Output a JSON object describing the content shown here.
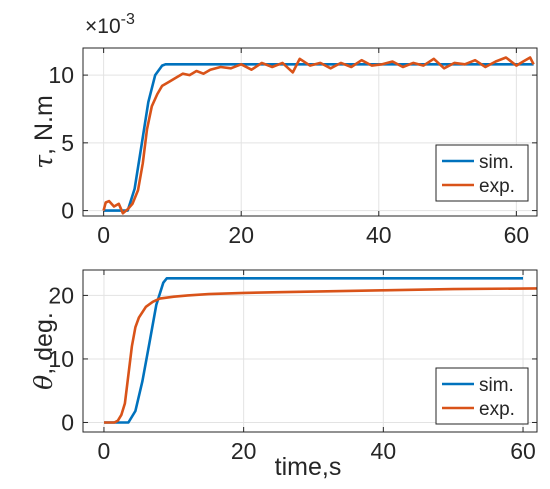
{
  "chart_data": [
    {
      "type": "line",
      "ylabel_var": "τ",
      "ylabel_unit": ", N.m",
      "xlabel": "",
      "exponent_label": "×10",
      "exponent_power": "-3",
      "xlim": [
        -3,
        63
      ],
      "ylim": [
        -0.4,
        12
      ],
      "xticks": [
        0,
        20,
        40,
        60
      ],
      "yticks": [
        0,
        5,
        10
      ],
      "grid": true,
      "legend_position": "bottom-right",
      "series": [
        {
          "name": "sim.",
          "color": "#0072BD",
          "x": [
            0,
            3.5,
            4.5,
            5.5,
            6.5,
            7.5,
            8.5,
            9,
            20,
            30,
            40,
            50,
            62.5
          ],
          "y": [
            0,
            0,
            1.6,
            4.8,
            8,
            10,
            10.7,
            10.8,
            10.8,
            10.8,
            10.8,
            10.8,
            10.8
          ]
        },
        {
          "name": "exp.",
          "color": "#D95319",
          "x": [
            0,
            0.3,
            0.8,
            1.5,
            2.2,
            2.8,
            3.5,
            4.2,
            5,
            5.7,
            6.3,
            7,
            7.8,
            8.5,
            9.5,
            10.5,
            11.5,
            12.5,
            13.5,
            14.5,
            15.5,
            17,
            18.5,
            20,
            21.5,
            23,
            24.5,
            26,
            27.5,
            28.5,
            30,
            31.5,
            33,
            34.5,
            36,
            37.5,
            39,
            40.5,
            42,
            43.5,
            45,
            46.5,
            48,
            49.5,
            51,
            52.5,
            54,
            55.5,
            57,
            58.5,
            60,
            61,
            62,
            62.5
          ],
          "y": [
            0,
            0.6,
            0.7,
            0.3,
            0.5,
            -0.2,
            0.1,
            0.5,
            1.5,
            3.5,
            6,
            7.7,
            8.6,
            9.2,
            9.5,
            9.8,
            10.1,
            10.0,
            10.3,
            10.1,
            10.4,
            10.6,
            10.5,
            10.8,
            10.4,
            10.9,
            10.6,
            10.9,
            10.2,
            11.2,
            10.7,
            10.9,
            10.5,
            10.9,
            10.6,
            11.1,
            10.7,
            10.8,
            11.0,
            10.6,
            10.9,
            10.7,
            11.2,
            10.5,
            10.9,
            10.8,
            11.1,
            10.6,
            11.0,
            11.3,
            10.7,
            11.0,
            11.3,
            10.8
          ]
        }
      ]
    },
    {
      "type": "line",
      "ylabel_var": "θ",
      "ylabel_unit": ", deg.",
      "xlabel": "time,s",
      "xlim": [
        -3,
        62
      ],
      "ylim": [
        -1.5,
        24
      ],
      "xticks": [
        0,
        20,
        40,
        60
      ],
      "yticks": [
        0,
        10,
        20
      ],
      "grid": true,
      "legend_position": "bottom-right",
      "series": [
        {
          "name": "sim.",
          "color": "#0072BD",
          "x": [
            0,
            3.5,
            4.5,
            5.5,
            6.5,
            7.5,
            8.5,
            9,
            20,
            30,
            40,
            50,
            60
          ],
          "y": [
            0,
            0,
            1.8,
            6.5,
            12.5,
            18.5,
            22,
            22.7,
            22.7,
            22.7,
            22.7,
            22.7,
            22.7
          ]
        },
        {
          "name": "exp.",
          "color": "#D95319",
          "x": [
            0,
            1.5,
            2,
            2.5,
            3,
            3.5,
            4,
            4.5,
            5,
            6,
            7,
            8,
            10,
            12,
            15,
            20,
            25,
            30,
            40,
            50,
            62
          ],
          "y": [
            0,
            0,
            0.3,
            1.2,
            3,
            7.5,
            12,
            15,
            16.5,
            18.2,
            19,
            19.5,
            19.8,
            20,
            20.2,
            20.4,
            20.5,
            20.6,
            20.8,
            21.0,
            21.1
          ]
        }
      ]
    }
  ]
}
